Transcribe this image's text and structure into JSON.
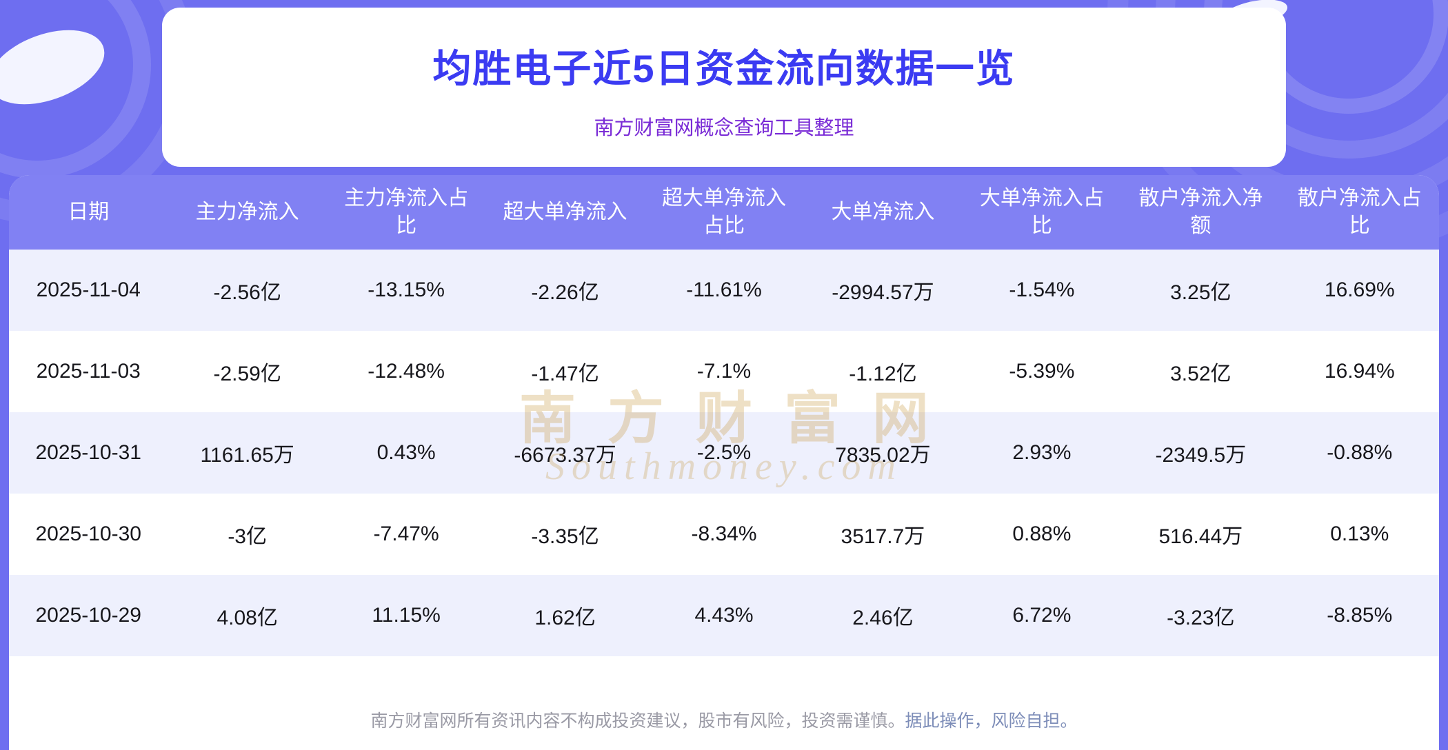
{
  "page": {
    "title": "均胜电子近5日资金流向数据一览",
    "subtitle": "南方财富网概念查询工具整理"
  },
  "chart_data": {
    "type": "table",
    "title": "均胜电子近5日资金流向数据一览",
    "subtitle": "南方财富网概念查询工具整理",
    "columns": [
      "日期",
      "主力净流入",
      "主力净流入占比",
      "超大单净流入",
      "超大单净流入占比",
      "大单净流入",
      "大单净流入占比",
      "散户净流入净额",
      "散户净流入占比"
    ],
    "rows": [
      [
        "2025-11-04",
        "-2.56亿",
        "-13.15%",
        "-2.26亿",
        "-11.61%",
        "-2994.57万",
        "-1.54%",
        "3.25亿",
        "16.69%"
      ],
      [
        "2025-11-03",
        "-2.59亿",
        "-12.48%",
        "-1.47亿",
        "-7.1%",
        "-1.12亿",
        "-5.39%",
        "3.52亿",
        "16.94%"
      ],
      [
        "2025-10-31",
        "1161.65万",
        "0.43%",
        "-6673.37万",
        "-2.5%",
        "7835.02万",
        "2.93%",
        "-2349.5万",
        "-0.88%"
      ],
      [
        "2025-10-30",
        "-3亿",
        "-7.47%",
        "-3.35亿",
        "-8.34%",
        "3517.7万",
        "0.88%",
        "516.44万",
        "0.13%"
      ],
      [
        "2025-10-29",
        "4.08亿",
        "11.15%",
        "1.62亿",
        "4.43%",
        "2.46亿",
        "6.72%",
        "-3.23亿",
        "-8.85%"
      ]
    ]
  },
  "watermark": {
    "line1": "南方财富网",
    "line2": "Southmoney.com"
  },
  "footer": {
    "disclaimer": "南方财富网所有资讯内容不构成投资建议，股市有风险，投资需谨慎。",
    "disclaimer_tail": "据此操作，风险自担。"
  },
  "colors": {
    "background": "#6e6ef0",
    "title": "#3b3bf2",
    "subtitle": "#7a2bd6",
    "table_header_bg": "#8181f3",
    "row_alt_bg": "#eef0fd",
    "watermark": "#c6983e",
    "footer_text": "#9a9aa5"
  }
}
